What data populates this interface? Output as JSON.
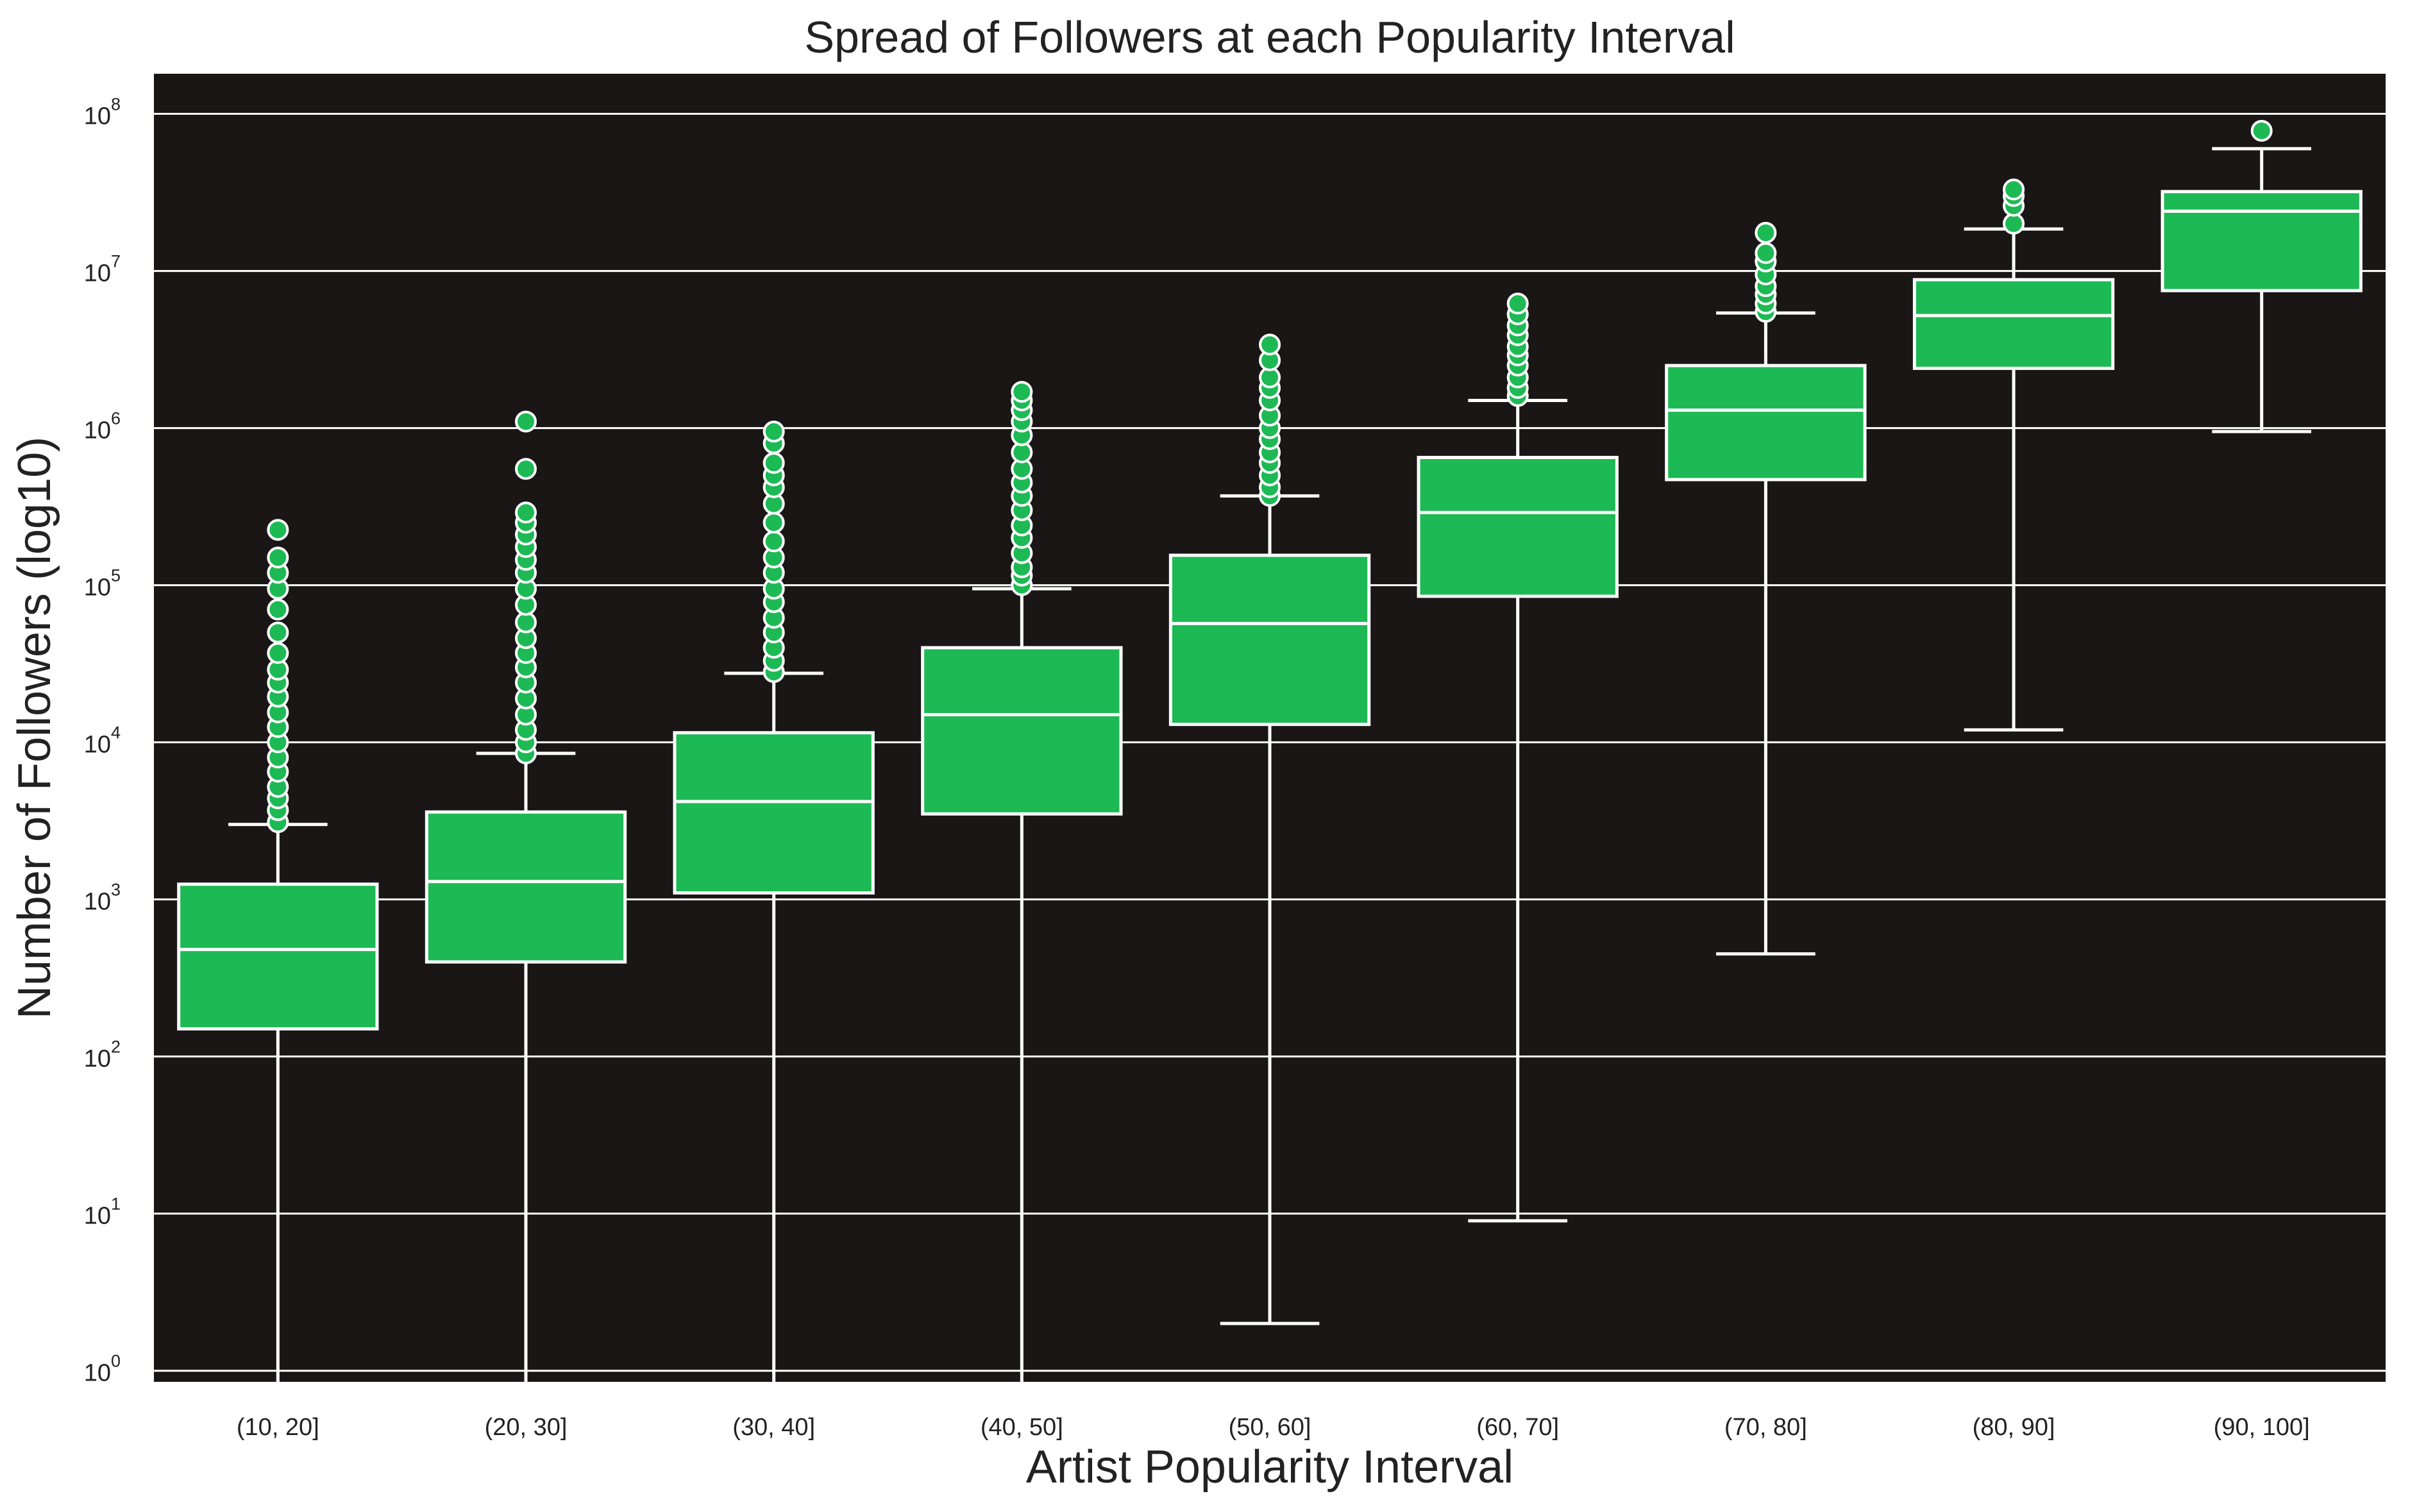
{
  "chart_data": {
    "type": "box",
    "title": "Spread of Followers at each Popularity Interval",
    "xlabel": "Artist Popularity Interval",
    "ylabel": "Number of Followers (log10)",
    "yscale": "log10",
    "ylim": [
      0.85,
      180000000
    ],
    "yticks": [
      {
        "base": "10",
        "exp": "0",
        "value": 1
      },
      {
        "base": "10",
        "exp": "1",
        "value": 10
      },
      {
        "base": "10",
        "exp": "2",
        "value": 100
      },
      {
        "base": "10",
        "exp": "3",
        "value": 1000
      },
      {
        "base": "10",
        "exp": "4",
        "value": 10000
      },
      {
        "base": "10",
        "exp": "5",
        "value": 100000
      },
      {
        "base": "10",
        "exp": "6",
        "value": 1000000
      },
      {
        "base": "10",
        "exp": "7",
        "value": 10000000
      },
      {
        "base": "10",
        "exp": "8",
        "value": 100000000
      }
    ],
    "grid": "horizontal",
    "colors": {
      "plot_bg": "#1a1616",
      "box_fill": "#1db954",
      "line": "#ffffff",
      "grid": "#ffffff"
    },
    "categories": [
      "(10, 20]",
      "(20, 30]",
      "(30, 40]",
      "(40, 50]",
      "(50, 60]",
      "(60, 70]",
      "(70, 80]",
      "(80, 90]",
      "(90, 100]"
    ],
    "boxes": [
      {
        "q1": 150,
        "median": 480,
        "q3": 1250,
        "whisker_low": 0.85,
        "whisker_high": 3000,
        "outliers": [
          3100,
          3700,
          4400,
          5200,
          6500,
          8000,
          10000,
          12500,
          15500,
          19500,
          24000,
          29000,
          37000,
          50000,
          70000,
          95000,
          120000,
          150000,
          225000
        ]
      },
      {
        "q1": 400,
        "median": 1300,
        "q3": 3600,
        "whisker_low": 0.85,
        "whisker_high": 8500,
        "outliers": [
          8500,
          10000,
          12000,
          15000,
          19000,
          24000,
          30000,
          37000,
          46000,
          58000,
          75000,
          95000,
          120000,
          145000,
          175000,
          210000,
          250000,
          290000,
          550000,
          1100000
        ]
      },
      {
        "q1": 1100,
        "median": 4200,
        "q3": 11500,
        "whisker_low": 0.85,
        "whisker_high": 27500,
        "outliers": [
          28000,
          33000,
          40000,
          50000,
          62000,
          78000,
          95000,
          120000,
          150000,
          190000,
          250000,
          330000,
          420000,
          500000,
          600000,
          800000,
          950000
        ]
      },
      {
        "q1": 3500,
        "median": 15000,
        "q3": 40000,
        "whisker_low": 0.85,
        "whisker_high": 95000,
        "outliers": [
          100000,
          115000,
          130000,
          160000,
          200000,
          240000,
          300000,
          370000,
          450000,
          550000,
          700000,
          900000,
          1100000,
          1300000,
          1500000,
          1700000
        ]
      },
      {
        "q1": 13000,
        "median": 57000,
        "q3": 155000,
        "whisker_low": 2,
        "whisker_high": 370000,
        "outliers": [
          370000,
          420000,
          500000,
          600000,
          700000,
          850000,
          1000000,
          1200000,
          1500000,
          1800000,
          2100000,
          2700000,
          3400000
        ]
      },
      {
        "q1": 85000,
        "median": 290000,
        "q3": 650000,
        "whisker_low": 9,
        "whisker_high": 1500000,
        "outliers": [
          1600000,
          1800000,
          2100000,
          2500000,
          2900000,
          3300000,
          3900000,
          4500000,
          5300000,
          6200000
        ]
      },
      {
        "q1": 470000,
        "median": 1300000,
        "q3": 2500000,
        "whisker_low": 450,
        "whisker_high": 5400000,
        "outliers": [
          5500000,
          6200000,
          7100000,
          8000000,
          9500000,
          11500000,
          13000000,
          17500000
        ]
      },
      {
        "q1": 2400000,
        "median": 5200000,
        "q3": 8800000,
        "whisker_low": 12000,
        "whisker_high": 18500000,
        "outliers": [
          20000000,
          26000000,
          30000000,
          33000000
        ]
      },
      {
        "q1": 7500000,
        "median": 24000000,
        "q3": 32000000,
        "whisker_low": 950000,
        "whisker_high": 60000000,
        "outliers": [
          78000000
        ]
      }
    ]
  }
}
